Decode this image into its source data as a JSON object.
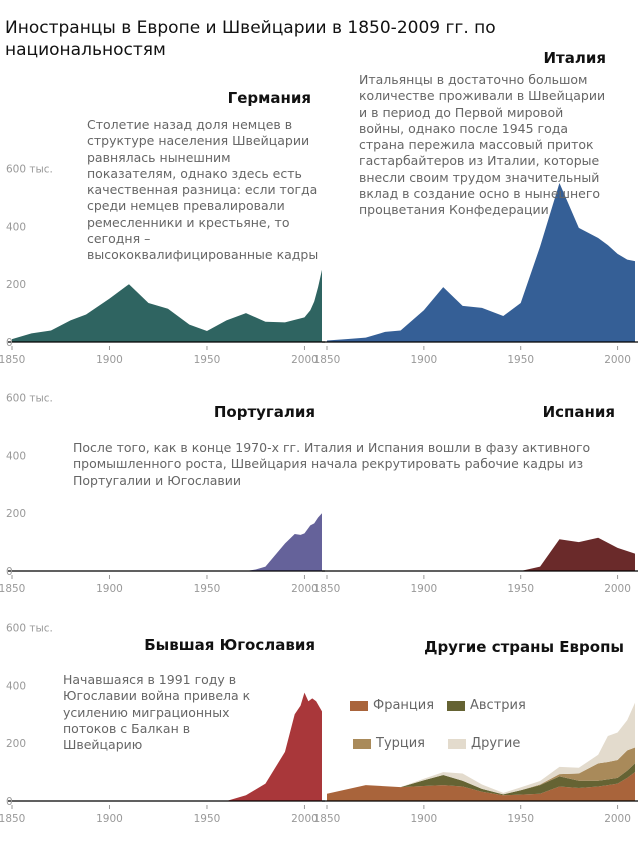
{
  "title": "Иностранцы в Европе и Швейцарии в 1850-2009 гг. по национальностям",
  "chart_data": [
    {
      "type": "area",
      "title": "Германия",
      "color": "#2f6461",
      "ylim": [
        0,
        600
      ],
      "yticks": [
        "600 тыс.",
        "400",
        "200",
        "0"
      ],
      "xticks": [
        "1850",
        "1900",
        "1950",
        "2000"
      ],
      "note": "Столетие назад доля немцев в структуре населения Швейцарии равнялась нынешним показателям, однако здесь есть качественная разница: если тогда среди немцев превалировали ремесленники и крестьяне, то сегодня – высококвалифицированные кадры",
      "x": [
        1850,
        1860,
        1870,
        1880,
        1888,
        1900,
        1910,
        1920,
        1930,
        1941,
        1950,
        1960,
        1970,
        1980,
        1990,
        2000,
        2003,
        2005,
        2007,
        2009
      ],
      "values": [
        10,
        30,
        40,
        75,
        95,
        150,
        200,
        135,
        115,
        60,
        38,
        75,
        100,
        70,
        68,
        85,
        110,
        140,
        190,
        250
      ]
    },
    {
      "type": "area",
      "title": "Италия",
      "color": "#355f96",
      "ylim": [
        0,
        600
      ],
      "xticks": [
        "1850",
        "1900",
        "1950",
        "2000"
      ],
      "note": "Итальянцы в достаточно большом количестве проживали в Швейцарии и в период до Первой мировой войны, однако после 1945 года страна пережила массовый приток гастарбайтеров из Италии, которые внесли своим трудом значительный вклад в создание осно в нынешнего процветания Конфедерации",
      "x": [
        1850,
        1860,
        1870,
        1880,
        1888,
        1900,
        1910,
        1920,
        1930,
        1941,
        1950,
        1960,
        1970,
        1980,
        1990,
        1995,
        2000,
        2005,
        2009
      ],
      "values": [
        5,
        10,
        15,
        35,
        40,
        110,
        190,
        125,
        118,
        90,
        135,
        330,
        550,
        395,
        360,
        335,
        305,
        285,
        280
      ]
    },
    {
      "type": "area",
      "title": "Португалия",
      "color": "#65629a",
      "ylim": [
        0,
        600
      ],
      "yticks": [
        "600 тыс.",
        "400",
        "200",
        "0"
      ],
      "xticks": [
        "1850",
        "1900",
        "1950",
        "2000"
      ],
      "note": "После того, как в конце 1970-х гг. Италия и Испания вошли в фазу активного промышленного роста, Швейцария начала рекрутировать рабочие кадры из Португалии и Югославии",
      "x": [
        1850,
        1970,
        1975,
        1980,
        1990,
        1995,
        1998,
        2000,
        2003,
        2005,
        2007,
        2009
      ],
      "values": [
        0,
        0,
        5,
        15,
        95,
        128,
        125,
        130,
        158,
        165,
        185,
        200
      ]
    },
    {
      "type": "area",
      "title": "Испания",
      "color": "#6a2a2a",
      "ylim": [
        0,
        600
      ],
      "xticks": [
        "1850",
        "1900",
        "1950",
        "2000"
      ],
      "x": [
        1850,
        1950,
        1960,
        1970,
        1980,
        1990,
        2000,
        2009
      ],
      "values": [
        0,
        0,
        15,
        110,
        100,
        115,
        80,
        60
      ]
    },
    {
      "type": "area",
      "title": "Бывшая Югославия",
      "color": "#a9373a",
      "ylim": [
        0,
        600
      ],
      "yticks": [
        "600 тыс.",
        "400",
        "200",
        "0"
      ],
      "xticks": [
        "1850",
        "1900",
        "1950",
        "2000"
      ],
      "note": "Начавшаяся в 1991 году в Югославии война привела к усилению миграционных потоков с Балкан в Швейцарию",
      "x": [
        1850,
        1960,
        1970,
        1980,
        1990,
        1995,
        1998,
        2000,
        2002,
        2004,
        2006,
        2009
      ],
      "values": [
        0,
        0,
        20,
        60,
        170,
        300,
        330,
        375,
        345,
        355,
        345,
        310
      ]
    },
    {
      "type": "stacked-area",
      "title": "Другие страны Европы",
      "ylim": [
        0,
        600
      ],
      "xticks": [
        "1850",
        "1900",
        "1950",
        "2000"
      ],
      "x": [
        1850,
        1870,
        1888,
        1900,
        1910,
        1920,
        1930,
        1941,
        1950,
        1960,
        1970,
        1980,
        1990,
        1995,
        2000,
        2005,
        2009
      ],
      "series": [
        {
          "name": "Франция",
          "color": "#a9643b",
          "values": [
            25,
            55,
            48,
            52,
            55,
            50,
            32,
            20,
            22,
            25,
            50,
            45,
            50,
            55,
            60,
            80,
            100
          ]
        },
        {
          "name": "Австрия",
          "color": "#656333",
          "values": [
            0,
            0,
            0,
            20,
            35,
            20,
            10,
            3,
            15,
            30,
            35,
            25,
            20,
            20,
            20,
            25,
            30
          ]
        },
        {
          "name": "Турция",
          "color": "#a98a5a",
          "values": [
            0,
            0,
            0,
            0,
            0,
            0,
            0,
            0,
            0,
            2,
            8,
            25,
            60,
            60,
            62,
            70,
            55
          ]
        },
        {
          "name": "Другие",
          "color": "#e3dbcd",
          "values": [
            0,
            0,
            0,
            5,
            10,
            25,
            15,
            5,
            10,
            12,
            25,
            20,
            30,
            90,
            95,
            105,
            155
          ]
        }
      ]
    }
  ]
}
